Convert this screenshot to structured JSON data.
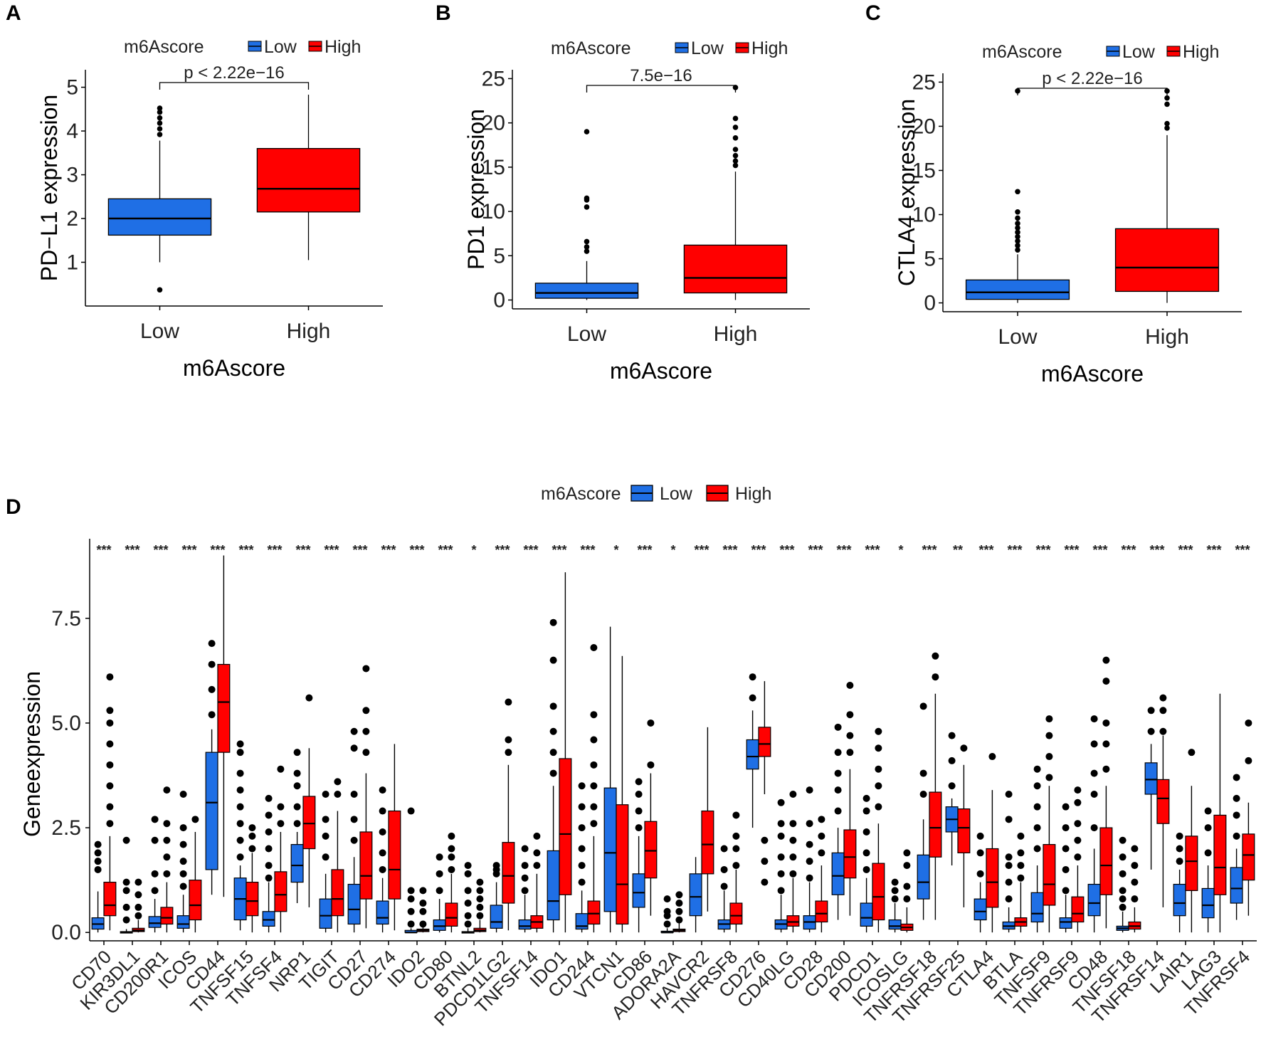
{
  "colors": {
    "low": "#1F6FE5",
    "high": "#FF0000",
    "axis": "#000000"
  },
  "legend": {
    "title": "m6Ascore",
    "low_label": "Low",
    "high_label": "High"
  },
  "chart_data": [
    {
      "panel": "A",
      "type": "box",
      "xlabel": "m6Ascore",
      "ylabel": "PD−L1 expression",
      "categories": [
        "Low",
        "High"
      ],
      "ylim": [
        0,
        5.4
      ],
      "yticks": [
        1,
        2,
        3,
        4,
        5
      ],
      "p_value": "p < 2.22e−16",
      "boxes": [
        {
          "group": "Low",
          "lower": 1.0,
          "q1": 1.62,
          "median": 2.0,
          "q3": 2.45,
          "upper": 3.78,
          "outliers": [
            0.37,
            3.92,
            4.05,
            4.18,
            4.3,
            4.43,
            4.52
          ]
        },
        {
          "group": "High",
          "lower": 1.05,
          "q1": 2.15,
          "median": 2.68,
          "q3": 3.6,
          "upper": 4.83,
          "outliers": []
        }
      ]
    },
    {
      "panel": "B",
      "type": "box",
      "xlabel": "m6Ascore",
      "ylabel": "PD1 expression",
      "categories": [
        "Low",
        "High"
      ],
      "ylim": [
        -1,
        26
      ],
      "yticks": [
        0,
        5,
        10,
        15,
        20,
        25
      ],
      "p_value": "7.5e−16",
      "boxes": [
        {
          "group": "Low",
          "lower": 0,
          "q1": 0.2,
          "median": 0.8,
          "q3": 1.9,
          "upper": 4.4,
          "outliers": [
            5.5,
            6.0,
            6.6,
            10.5,
            11.3,
            11.5,
            19.0
          ]
        },
        {
          "group": "High",
          "lower": 0,
          "q1": 0.8,
          "median": 2.5,
          "q3": 6.2,
          "upper": 14.5,
          "outliers": [
            15.2,
            15.7,
            16.3,
            17.0,
            18.3,
            19.5,
            20.5,
            24.0
          ]
        }
      ]
    },
    {
      "panel": "C",
      "type": "box",
      "xlabel": "m6Ascore",
      "ylabel": "CTLA4 expression",
      "categories": [
        "Low",
        "High"
      ],
      "ylim": [
        -1,
        26
      ],
      "yticks": [
        0,
        5,
        10,
        15,
        20,
        25
      ],
      "p_value": "p < 2.22e−16",
      "boxes": [
        {
          "group": "Low",
          "lower": 0,
          "q1": 0.4,
          "median": 1.2,
          "q3": 2.6,
          "upper": 5.5,
          "outliers": [
            6.0,
            6.5,
            7.0,
            7.5,
            8.0,
            8.5,
            9.0,
            9.6,
            10.3,
            12.6,
            24.0
          ]
        },
        {
          "group": "High",
          "lower": 0,
          "q1": 1.3,
          "median": 4.0,
          "q3": 8.4,
          "upper": 19.0,
          "outliers": [
            19.8,
            20.3,
            22.5,
            23.2,
            24.0
          ]
        }
      ]
    },
    {
      "panel": "D",
      "type": "box",
      "xlabel": "",
      "ylabel": "Geneexpression",
      "ylim": [
        -0.2,
        9.4
      ],
      "yticks": [
        0.0,
        2.5,
        5.0,
        7.5
      ],
      "ytick_labels": [
        "0.0",
        "2.5",
        "5.0",
        "7.5"
      ],
      "categories": [
        "CD70",
        "KIR3DL1",
        "CD200R1",
        "ICOS",
        "CD44",
        "TNFSF15",
        "TNFSF4",
        "NRP1",
        "TIGIT",
        "CD27",
        "CD274",
        "IDO2",
        "CD80",
        "BTNL2",
        "PDCD1LG2",
        "TNFSF14",
        "IDO1",
        "CD244",
        "VTCN1",
        "CD86",
        "ADORA2A",
        "HAVCR2",
        "TNFRSF8",
        "CD276",
        "CD40LG",
        "CD28",
        "CD200",
        "PDCD1",
        "ICOSLG",
        "TNFRSF18",
        "TNFRSF25",
        "CTLA4",
        "BTLA",
        "TNFSF9",
        "TNFRSF9",
        "CD48",
        "TNFSF18",
        "TNFRSF14",
        "LAIR1",
        "LAG3",
        "TNFRSF4"
      ],
      "significance": [
        "***",
        "***",
        "***",
        "***",
        "***",
        "***",
        "***",
        "***",
        "***",
        "***",
        "***",
        "***",
        "***",
        "*",
        "***",
        "***",
        "***",
        "***",
        "*",
        "***",
        "*",
        "***",
        "***",
        "***",
        "***",
        "***",
        "***",
        "***",
        "*",
        "***",
        "**",
        "***",
        "***",
        "***",
        "***",
        "***",
        "***",
        "***",
        "***",
        "***",
        "***"
      ],
      "low": [
        [
          0.08,
          0.2,
          0.35,
          0.98
        ],
        [
          0,
          0,
          0.02,
          0.08
        ],
        [
          0.12,
          0.22,
          0.38,
          0.8
        ],
        [
          0.1,
          0.2,
          0.4,
          0.9
        ],
        [
          1.5,
          3.1,
          4.3,
          4.85
        ],
        [
          0.3,
          0.8,
          1.3,
          1.6
        ],
        [
          0.15,
          0.3,
          0.5,
          1.2
        ],
        [
          1.2,
          1.6,
          2.1,
          2.4
        ],
        [
          0.1,
          0.4,
          0.8,
          1.4
        ],
        [
          0.2,
          0.55,
          1.15,
          1.8
        ],
        [
          0.2,
          0.35,
          0.75,
          1.3
        ],
        [
          0,
          0,
          0.05,
          0.1
        ],
        [
          0.05,
          0.15,
          0.3,
          0.8
        ],
        [
          0,
          0,
          0.02,
          0.1
        ],
        [
          0.1,
          0.25,
          0.65,
          1.2
        ],
        [
          0.08,
          0.15,
          0.3,
          0.9
        ],
        [
          0.3,
          0.75,
          1.95,
          3.5
        ],
        [
          0.08,
          0.15,
          0.45,
          1.0
        ],
        [
          0.5,
          1.9,
          3.45,
          7.3
        ],
        [
          0.6,
          0.95,
          1.4,
          2.3
        ],
        [
          0,
          0,
          0.03,
          0.1
        ],
        [
          0.4,
          0.85,
          1.4,
          1.8
        ],
        [
          0.08,
          0.2,
          0.3,
          1.0
        ],
        [
          3.9,
          4.2,
          4.6,
          5.3
        ],
        [
          0.08,
          0.2,
          0.3,
          0.9
        ],
        [
          0.08,
          0.25,
          0.4,
          1.2
        ],
        [
          0.9,
          1.35,
          1.9,
          2.5
        ],
        [
          0.15,
          0.35,
          0.7,
          1.3
        ],
        [
          0.08,
          0.15,
          0.3,
          0.7
        ],
        [
          0.8,
          1.2,
          1.85,
          2.7
        ],
        [
          2.4,
          2.7,
          3.0,
          3.2
        ],
        [
          0.3,
          0.5,
          0.8,
          1.2
        ],
        [
          0.08,
          0.15,
          0.25,
          0.6
        ],
        [
          0.25,
          0.45,
          0.95,
          1.6
        ],
        [
          0.1,
          0.25,
          0.35,
          0.9
        ],
        [
          0.4,
          0.7,
          1.15,
          2.0
        ],
        [
          0.05,
          0.1,
          0.15,
          0.5
        ],
        [
          3.3,
          3.65,
          4.05,
          4.5
        ],
        [
          0.4,
          0.7,
          1.15,
          1.5
        ],
        [
          0.35,
          0.65,
          1.05,
          1.6
        ],
        [
          0.7,
          1.05,
          1.55,
          2.0
        ]
      ],
      "high": [
        [
          0.4,
          0.65,
          1.2,
          2.3
        ],
        [
          0.02,
          0.05,
          0.1,
          0.3
        ],
        [
          0.2,
          0.35,
          0.6,
          1.2
        ],
        [
          0.3,
          0.65,
          1.25,
          2.4
        ],
        [
          4.3,
          5.5,
          6.4,
          9.0
        ],
        [
          0.4,
          0.75,
          1.2,
          1.9
        ],
        [
          0.5,
          0.9,
          1.45,
          2.4
        ],
        [
          2.0,
          2.6,
          3.25,
          4.4
        ],
        [
          0.4,
          0.8,
          1.5,
          2.9
        ],
        [
          0.8,
          1.35,
          2.4,
          3.8
        ],
        [
          0.8,
          1.5,
          2.9,
          4.5
        ],
        [
          0.02,
          0.05,
          0.08,
          0.15
        ],
        [
          0.15,
          0.35,
          0.7,
          1.4
        ],
        [
          0.02,
          0.05,
          0.1,
          0.3
        ],
        [
          0.7,
          1.35,
          2.15,
          4.0
        ],
        [
          0.1,
          0.25,
          0.4,
          1.4
        ],
        [
          0.9,
          2.35,
          4.15,
          8.6
        ],
        [
          0.2,
          0.45,
          0.75,
          2.3
        ],
        [
          0.2,
          1.15,
          3.05,
          6.6
        ],
        [
          1.3,
          1.95,
          2.65,
          3.8
        ],
        [
          0.02,
          0.05,
          0.08,
          0.25
        ],
        [
          1.4,
          2.1,
          2.9,
          4.9
        ],
        [
          0.2,
          0.4,
          0.7,
          1.5
        ],
        [
          4.2,
          4.5,
          4.9,
          6.0
        ],
        [
          0.15,
          0.25,
          0.4,
          1.3
        ],
        [
          0.25,
          0.45,
          0.75,
          1.6
        ],
        [
          1.3,
          1.8,
          2.45,
          3.9
        ],
        [
          0.3,
          0.85,
          1.65,
          2.6
        ],
        [
          0.05,
          0.12,
          0.2,
          0.6
        ],
        [
          1.8,
          2.5,
          3.35,
          5.7
        ],
        [
          1.9,
          2.5,
          2.95,
          4.0
        ],
        [
          0.6,
          1.2,
          2.0,
          3.4
        ],
        [
          0.15,
          0.25,
          0.35,
          1.2
        ],
        [
          0.65,
          1.15,
          2.1,
          3.5
        ],
        [
          0.25,
          0.45,
          0.85,
          1.6
        ],
        [
          0.9,
          1.6,
          2.5,
          3.5
        ],
        [
          0.08,
          0.15,
          0.25,
          0.6
        ],
        [
          2.6,
          3.2,
          3.65,
          4.7
        ],
        [
          1.0,
          1.7,
          2.3,
          3.5
        ],
        [
          0.9,
          1.55,
          2.8,
          5.7
        ],
        [
          1.25,
          1.85,
          2.35,
          3.1
        ]
      ],
      "low_whisker_min": [
        0,
        0,
        0,
        0,
        0.9,
        0.05,
        0,
        0.7,
        0,
        0,
        0,
        0,
        0,
        0,
        0,
        0,
        0,
        0,
        0,
        0,
        0,
        0,
        0,
        2.5,
        0,
        0,
        0.3,
        0,
        0,
        0.3,
        1.6,
        0,
        0,
        0,
        0,
        0,
        0,
        1.5,
        0,
        0,
        0.3
      ],
      "high_whisker_min": [
        0.05,
        0,
        0,
        0,
        0.85,
        0,
        0,
        0.6,
        0,
        0.1,
        0.05,
        0,
        0,
        0,
        0.05,
        0,
        0,
        0,
        0,
        0.4,
        0,
        0.5,
        0,
        3.3,
        0,
        0,
        0.4,
        0,
        0,
        0.3,
        0.6,
        0,
        0,
        0,
        0,
        0.1,
        0,
        0.6,
        0,
        0,
        0.4
      ],
      "low_outliers": [
        [
          1.5,
          1.7,
          1.9,
          2.1
        ],
        [
          0.3,
          0.6,
          1.0,
          1.2,
          2.2
        ],
        [
          1.0,
          1.4,
          2.2,
          2.7
        ],
        [
          1.1,
          1.4,
          1.7,
          2.1,
          2.5,
          3.3
        ],
        [
          5.2,
          5.8,
          6.4,
          6.9
        ],
        [
          1.8,
          2.2,
          2.6,
          3.0,
          3.4,
          3.8,
          4.3,
          4.5
        ],
        [
          1.3,
          1.6,
          2.0,
          2.4,
          2.8,
          3.2
        ],
        [
          2.6,
          3.0,
          3.5,
          3.8,
          4.3
        ],
        [
          1.8,
          2.3,
          2.7,
          3.3
        ],
        [
          2.2,
          2.7,
          3.3,
          4.4,
          4.8
        ],
        [
          1.5,
          1.9,
          2.4,
          2.9,
          3.4
        ],
        [
          0.2,
          0.5,
          0.8,
          1.0,
          2.9
        ],
        [
          1.0,
          1.4,
          1.8
        ],
        [
          0.2,
          0.4,
          0.7,
          1.0,
          1.4,
          1.6
        ],
        [
          1.4,
          1.5,
          1.6
        ],
        [
          1.0,
          1.3,
          1.6,
          2.0
        ],
        [
          3.8,
          4.3,
          4.8,
          5.4,
          6.5,
          7.4
        ],
        [
          1.2,
          1.6,
          2.0,
          2.5,
          3.0,
          3.5
        ],
        [],
        [
          2.5,
          2.9,
          3.3,
          3.6
        ],
        [
          0.2,
          0.4,
          0.5,
          0.8
        ],
        [],
        [
          1.1,
          1.5,
          2.0
        ],
        [
          5.6,
          6.1
        ],
        [
          1.0,
          1.4,
          1.8,
          2.3,
          2.6,
          3.1
        ],
        [
          1.3,
          1.7,
          2.1,
          2.6,
          3.4
        ],
        [
          2.9,
          3.4,
          3.8,
          4.3,
          4.9
        ],
        [
          1.5,
          1.9,
          2.4,
          2.9,
          3.2
        ],
        [
          0.8,
          1.0,
          1.2
        ],
        [
          3.3,
          3.8,
          5.4
        ],
        [
          3.5,
          4.1,
          4.7
        ],
        [
          1.4,
          1.9,
          2.3
        ],
        [
          0.8,
          1.2,
          1.6,
          1.8,
          2.7,
          3.3
        ],
        [
          2.0,
          2.5,
          3.0,
          3.5,
          3.9
        ],
        [
          1.0,
          1.5,
          2.0,
          2.5,
          3.0
        ],
        [
          2.5,
          3.3,
          3.8,
          4.5,
          5.1
        ],
        [
          0.6,
          0.8,
          1.0,
          1.4,
          1.8,
          2.2
        ],
        [
          4.8,
          5.3
        ],
        [
          1.7,
          2.0,
          2.3
        ],
        [
          1.9,
          2.5,
          2.9
        ],
        [
          2.3,
          2.8,
          3.2,
          3.7
        ]
      ],
      "high_outliers": [
        [
          2.6,
          3.0,
          3.5,
          4.0,
          4.5,
          5.0,
          5.3,
          6.1
        ],
        [
          0.4,
          0.6,
          0.9,
          1.2
        ],
        [
          1.4,
          1.8,
          2.2,
          2.6,
          3.4
        ],
        [
          2.7
        ],
        [],
        [
          2.0,
          2.3,
          2.5
        ],
        [
          2.6,
          3.0,
          3.9
        ],
        [
          5.6
        ],
        [
          3.3,
          3.6
        ],
        [
          4.3,
          4.8,
          5.3,
          6.3
        ],
        [],
        [
          0.2,
          0.5,
          0.7,
          1.0
        ],
        [
          1.5,
          1.8,
          2.0,
          2.3
        ],
        [
          0.4,
          0.6,
          0.8,
          1.0,
          1.2
        ],
        [
          4.3,
          4.6,
          5.5
        ],
        [
          1.6,
          1.9,
          2.3
        ],
        [],
        [
          2.6,
          3.0,
          3.5,
          4.0,
          4.6,
          5.2,
          6.8
        ],
        [],
        [
          4.0,
          5.0
        ],
        [
          0.3,
          0.5,
          0.7,
          0.9
        ],
        [],
        [
          1.6,
          2.0,
          2.3,
          2.8
        ],
        [
          1.2,
          1.7,
          2.2
        ],
        [
          1.4,
          1.8,
          2.2,
          2.6,
          3.3
        ],
        [
          1.9,
          2.3,
          2.7
        ],
        [
          4.3,
          4.7,
          5.2,
          5.9
        ],
        [
          3.0,
          3.5,
          3.9,
          4.4,
          4.8
        ],
        [
          0.8,
          1.1,
          1.6,
          1.9
        ],
        [
          6.1,
          6.6
        ],
        [
          4.4
        ],
        [
          4.2
        ],
        [
          1.3,
          1.6,
          1.9,
          2.3
        ],
        [
          3.7,
          4.2,
          4.7,
          5.1
        ],
        [
          1.8,
          2.2,
          2.6,
          3.1,
          3.4
        ],
        [
          3.9,
          4.5,
          5.0,
          6.0,
          6.5
        ],
        [
          0.8,
          1.2,
          1.6,
          2.0
        ],
        [
          4.8,
          5.3,
          5.6
        ],
        [
          4.3
        ],
        [],
        [
          4.1,
          5.0
        ]
      ]
    }
  ]
}
